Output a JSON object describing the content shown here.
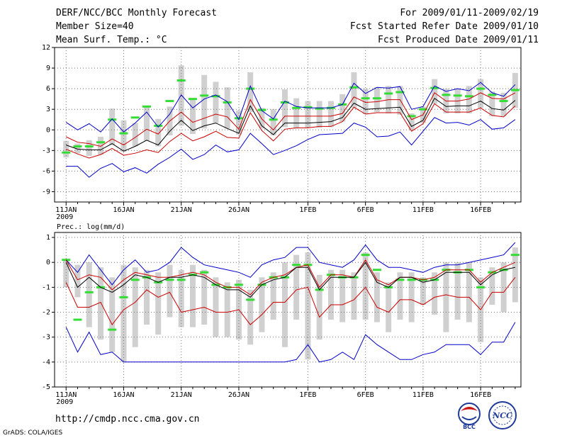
{
  "header": {
    "title": "DERF/NCC/BCC Monthly Forecast",
    "member_size": "Member Size=40",
    "variable": "Mean Surf. Temp.: °C",
    "period": "For 2009/01/11-2009/02/19",
    "refer_date": "Fcst Started Refer Date 2009/01/10",
    "produced_date": "Fcst Produced Date 2009/01/11"
  },
  "footer": {
    "url": "http://cmdp.ncc.cma.gov.cn",
    "grads": "GrADS: COLA/IGES",
    "logo_left_text": "BCC",
    "logo_right_text": "NCC"
  },
  "colors": {
    "envelope": "#0000cc",
    "spread": "#cc0000",
    "mean": "#000000",
    "box": "#d0d0d0",
    "member_mark": "#33dd33"
  },
  "chart_data": [
    {
      "type": "line",
      "title": "Mean Surf. Temp.: °C",
      "xlabel": "",
      "ylabel": "°C",
      "x_days": [
        11,
        12,
        13,
        14,
        15,
        16,
        17,
        18,
        19,
        20,
        21,
        22,
        23,
        24,
        25,
        26,
        27,
        28,
        29,
        30,
        31,
        32,
        33,
        34,
        35,
        36,
        37,
        38,
        39,
        40,
        41,
        42,
        43,
        44,
        45,
        46,
        47,
        48,
        49,
        50
      ],
      "xtick_labels": [
        "11JAN",
        "16JAN",
        "21JAN",
        "26JAN",
        "1FEB",
        "6FEB",
        "11FEB",
        "16FEB"
      ],
      "xtick_days": [
        11,
        16,
        21,
        26,
        32,
        37,
        42,
        47
      ],
      "year_label": "2009",
      "ylim": [
        -10.5,
        12
      ],
      "yticks": [
        -9,
        -6,
        -3,
        0,
        3,
        6,
        9,
        12
      ],
      "grid": true,
      "series": [
        {
          "name": "max",
          "color_key": "envelope",
          "values": [
            1.1,
            0,
            0.9,
            -0.3,
            1.6,
            -0.3,
            1,
            2.6,
            0.4,
            2.3,
            5.1,
            3.2,
            4.5,
            5.1,
            4.1,
            1.5,
            6.4,
            2.8,
            1.6,
            4.2,
            3.4,
            3.2,
            3.2,
            3.2,
            3.7,
            6.8,
            5.3,
            6.2,
            6.1,
            6.3,
            3,
            3.4,
            6.4,
            5.6,
            6,
            5.7,
            6.9,
            5.4,
            4.9,
            6.6
          ]
        },
        {
          "name": "upper",
          "color_key": "spread",
          "values": [
            -1,
            -1.8,
            -2,
            -2.4,
            -1.3,
            -2.2,
            -1.1,
            0.1,
            -0.6,
            1.3,
            2.6,
            1.1,
            1.7,
            2.3,
            1.9,
            0.1,
            4.4,
            1.6,
            0,
            2,
            2,
            2,
            2,
            2,
            2.4,
            4.8,
            4,
            4.1,
            4.4,
            4.4,
            1.5,
            2.2,
            5.4,
            4.2,
            4.2,
            4.5,
            5.4,
            4.6,
            4.5,
            5.4
          ]
        },
        {
          "name": "mean",
          "color_key": "mean",
          "values": [
            -2.2,
            -2.8,
            -2.9,
            -2.9,
            -2,
            -3.1,
            -2.4,
            -1.5,
            -2.2,
            -0.2,
            1.4,
            -0.1,
            0.6,
            1,
            0.2,
            -0.5,
            3.5,
            0.6,
            -0.7,
            1,
            1,
            1,
            1.1,
            1.2,
            1.8,
            3.9,
            3,
            3.1,
            3.2,
            3.3,
            0.5,
            1.4,
            4.6,
            3.4,
            3.5,
            3.5,
            4.2,
            3.1,
            2.9,
            4.3
          ]
        },
        {
          "name": "lower",
          "color_key": "spread",
          "values": [
            -2.8,
            -3.5,
            -4.1,
            -3.6,
            -2.7,
            -3.7,
            -3.4,
            -2.9,
            -3.3,
            -1.7,
            -0.5,
            -1.6,
            -1,
            -0.2,
            -1.1,
            -1.2,
            2.5,
            -0.1,
            -1.6,
            0.1,
            0.3,
            0.3,
            0.5,
            0.5,
            1.2,
            3.3,
            2.3,
            2.5,
            2.5,
            2.5,
            -0.2,
            0.9,
            3.8,
            2.6,
            2.6,
            2.6,
            3.2,
            2.1,
            1.9,
            3.5
          ]
        },
        {
          "name": "min",
          "color_key": "envelope",
          "values": [
            -5.3,
            -5.3,
            -6.9,
            -5.6,
            -4.9,
            -6.1,
            -5.5,
            -6.3,
            -5,
            -4,
            -2.8,
            -4.3,
            -3.6,
            -2.2,
            -3.2,
            -2.9,
            -0.5,
            -2,
            -3.6,
            -3,
            -2.3,
            -1.4,
            -0.7,
            -0.6,
            -0.5,
            1,
            0.4,
            -1,
            -0.9,
            -0.3,
            -2.2,
            -0.2,
            1.8,
            1,
            1.1,
            0.7,
            1.5,
            0.1,
            0.3,
            1.5
          ]
        }
      ],
      "box_low": [
        -4,
        -3.4,
        -3.8,
        -3.6,
        -2.2,
        -3.2,
        -2.4,
        -1.6,
        -2.4,
        -0.8,
        0.6,
        -0.6,
        0.2,
        1,
        0.2,
        -0.7,
        2.6,
        0.2,
        -0.8,
        0.4,
        0.2,
        0.3,
        0.3,
        0.4,
        1.2,
        3.2,
        2.3,
        2.6,
        2.4,
        2.2,
        0,
        1,
        3.8,
        2.4,
        2.4,
        2.4,
        3.2,
        2,
        2,
        3.2
      ],
      "box_high": [
        -1.6,
        -2,
        -1.5,
        -1,
        3.1,
        1.4,
        1,
        3.4,
        1.6,
        3.4,
        9.4,
        4.4,
        8,
        7,
        6.2,
        2.8,
        8.4,
        3.2,
        3,
        5.9,
        4.6,
        4.2,
        4.2,
        4.2,
        5.2,
        8.4,
        6,
        6.2,
        6.4,
        6.4,
        2.4,
        3.4,
        7.4,
        6,
        6,
        6.4,
        7.4,
        5.6,
        5.4,
        8.3
      ],
      "member_marks": [
        -3.3,
        -2.4,
        -2.4,
        -1.8,
        1.5,
        -0.5,
        1.8,
        3.4,
        0.6,
        4.2,
        7.2,
        4.5,
        5,
        4.9,
        4,
        1.7,
        6,
        2.9,
        1.5,
        4,
        3.2,
        3.3,
        3.1,
        3.2,
        3.7,
        6.2,
        4.6,
        4.6,
        5.3,
        5.5,
        2,
        3,
        6.1,
        5.1,
        5,
        4.9,
        6,
        5.1,
        4.2,
        5.8
      ]
    },
    {
      "type": "line",
      "title": "Prec.: log(mm/d)",
      "xlabel": "",
      "ylabel": "log(mm/d)",
      "x_days": [
        11,
        12,
        13,
        14,
        15,
        16,
        17,
        18,
        19,
        20,
        21,
        22,
        23,
        24,
        25,
        26,
        27,
        28,
        29,
        30,
        31,
        32,
        33,
        34,
        35,
        36,
        37,
        38,
        39,
        40,
        41,
        42,
        43,
        44,
        45,
        46,
        47,
        48,
        49,
        50
      ],
      "xtick_labels": [
        "11JAN",
        "16JAN",
        "21JAN",
        "26JAN",
        "1FEB",
        "6FEB",
        "11FEB",
        "16FEB"
      ],
      "xtick_days": [
        11,
        16,
        21,
        26,
        32,
        37,
        42,
        47
      ],
      "year_label": "2009",
      "ylim": [
        -5,
        1.2
      ],
      "yticks": [
        -5,
        -4,
        -3,
        -2,
        -1,
        0,
        1
      ],
      "grid": true,
      "series": [
        {
          "name": "max",
          "color_key": "envelope",
          "values": [
            0.1,
            -0.4,
            0.3,
            -0.3,
            -0.9,
            -0.3,
            0.1,
            -0.4,
            -0.3,
            0,
            0.6,
            0.2,
            -0.1,
            -0.2,
            -0.3,
            -0.4,
            -0.6,
            -0.1,
            0.1,
            0.2,
            0.6,
            0.6,
            0,
            -0.1,
            -0.2,
            0.1,
            0.7,
            0.1,
            -0.2,
            -0.2,
            -0.3,
            -0.4,
            -0.2,
            -0.1,
            -0.1,
            0,
            0.1,
            0.2,
            0.3,
            0.8
          ]
        },
        {
          "name": "upper",
          "color_key": "spread",
          "values": [
            0.1,
            -0.7,
            -0.5,
            -0.6,
            -1.1,
            -0.7,
            -0.4,
            -0.5,
            -0.6,
            -0.6,
            -0.5,
            -0.4,
            -0.5,
            -0.8,
            -1,
            -1,
            -1.3,
            -0.8,
            -0.6,
            -0.5,
            -0.2,
            -0.1,
            -1,
            -0.5,
            -0.5,
            -0.6,
            0.1,
            -0.7,
            -0.9,
            -0.6,
            -0.6,
            -0.7,
            -0.6,
            -0.3,
            -0.3,
            -0.3,
            -0.8,
            -0.4,
            -0.2,
            0
          ]
        },
        {
          "name": "mean",
          "color_key": "mean",
          "values": [
            0,
            -1,
            -0.6,
            -1,
            -1.2,
            -0.9,
            -0.5,
            -0.6,
            -0.8,
            -0.6,
            -0.6,
            -0.5,
            -0.6,
            -0.9,
            -1.1,
            -1.1,
            -1.4,
            -0.9,
            -0.7,
            -0.6,
            -0.2,
            -0.2,
            -1.1,
            -0.6,
            -0.6,
            -0.6,
            0,
            -0.8,
            -1,
            -0.6,
            -0.6,
            -0.8,
            -0.7,
            -0.4,
            -0.4,
            -0.4,
            -0.9,
            -0.5,
            -0.3,
            -0.2
          ]
        },
        {
          "name": "lower",
          "color_key": "spread",
          "values": [
            -0.8,
            -1.8,
            -1.8,
            -1.6,
            -2.5,
            -1.9,
            -1.6,
            -1.1,
            -1.4,
            -1.2,
            -2,
            -1.9,
            -1.8,
            -2,
            -2,
            -1.9,
            -2.5,
            -2.1,
            -1.6,
            -1.6,
            -1.1,
            -1,
            -2.2,
            -1.7,
            -1.7,
            -1.5,
            -1,
            -1.8,
            -2,
            -1.5,
            -1.5,
            -1.7,
            -1.4,
            -1.3,
            -1.4,
            -1.4,
            -1.9,
            -1.2,
            -1.2,
            -0.6
          ]
        },
        {
          "name": "min",
          "color_key": "envelope",
          "values": [
            -2.6,
            -3.6,
            -2.8,
            -3.7,
            -3.6,
            -4,
            -4,
            -4,
            -4,
            -4,
            -4,
            -4,
            -4,
            -4,
            -4,
            -4,
            -4,
            -4,
            -4,
            -4,
            -3.9,
            -3.3,
            -4,
            -3.9,
            -3.6,
            -3.9,
            -2.9,
            -3.3,
            -3.6,
            -3.9,
            -3.9,
            -3.7,
            -3.6,
            -3.3,
            -3.3,
            -3.3,
            -3.7,
            -3.2,
            -3.2,
            -2.4
          ]
        },
        {
          "name": "envelope_dupe",
          "color_key": "envelope",
          "values": []
        }
      ],
      "box_low": [
        -1,
        -1.4,
        -2.6,
        -3.1,
        -3.6,
        -4,
        -3.4,
        -2.5,
        -2.9,
        -2.2,
        -2.6,
        -2.6,
        -2.5,
        -3,
        -3,
        -3.1,
        -3.3,
        -2.8,
        -2.3,
        -3.4,
        -2.3,
        -3.9,
        -3.1,
        -2.3,
        -2.4,
        -2.3,
        -2.3,
        -2.4,
        -2.8,
        -2.3,
        -2.4,
        -1.7,
        -2.1,
        -2.8,
        -2.3,
        -2.4,
        -3.2,
        -1.7,
        -2,
        -1.6
      ],
      "box_high": [
        0.1,
        -0.1,
        0,
        -0.2,
        -0.6,
        -0.1,
        -0.2,
        -0.3,
        -0.4,
        -0.1,
        -0.3,
        -0.1,
        -0.3,
        -0.6,
        -0.8,
        -0.7,
        -1.1,
        -0.6,
        -0.4,
        0,
        0.3,
        0.4,
        -0.5,
        -0.3,
        -0.3,
        -0.4,
        0.4,
        -0.4,
        -0.8,
        -0.4,
        -0.4,
        -0.6,
        -0.4,
        0,
        0,
        0,
        -0.6,
        -0.2,
        0,
        0.6
      ],
      "member_marks": [
        0.1,
        -2.3,
        -1.2,
        -1,
        -2.7,
        -1.4,
        -0.7,
        -0.6,
        -0.8,
        -0.7,
        -0.7,
        -0.5,
        -0.4,
        -0.9,
        -1,
        -0.9,
        -1.5,
        -0.9,
        -0.6,
        -0.6,
        -0.1,
        -0.1,
        -1.1,
        -0.5,
        -0.6,
        -0.6,
        0.3,
        -0.3,
        -1,
        -0.7,
        -0.7,
        -0.7,
        -0.7,
        -0.3,
        -0.4,
        -0.3,
        -1,
        -0.4,
        -0.3,
        0.3
      ]
    }
  ]
}
